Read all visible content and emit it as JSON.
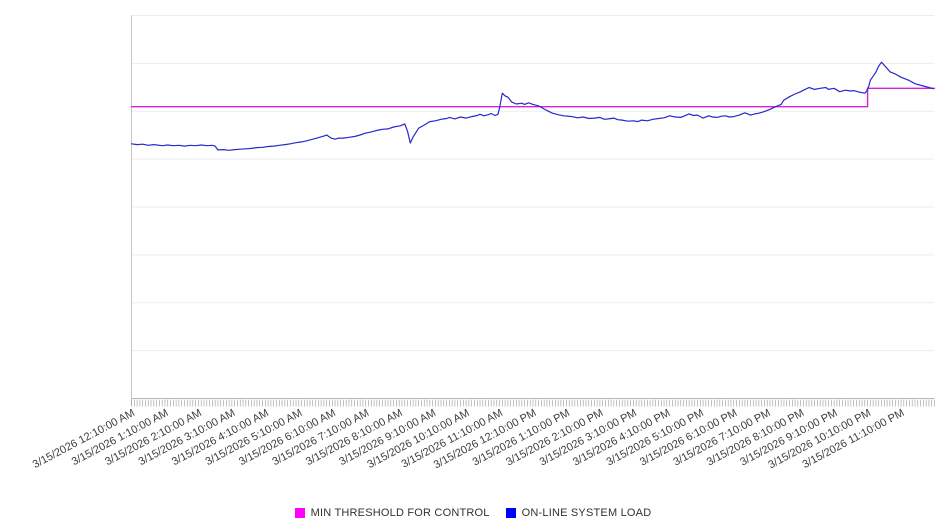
{
  "chart": {
    "legend": {
      "items": [
        {
          "label": "MIN THRESHOLD FOR CONTROL",
          "color": "#ff00ff"
        },
        {
          "label": "ON-LINE SYSTEM LOAD",
          "color": "#0000ff"
        }
      ]
    }
  },
  "chart_data": {
    "type": "line",
    "title": "",
    "x_axis": {
      "kind": "datetime",
      "label_interval_minutes": 60,
      "minor_tick_minutes": 5,
      "range_minutes": [
        0,
        1440
      ],
      "labels": [
        "3/15/2026 12:10:00 AM",
        "3/15/2026 1:10:00 AM",
        "3/15/2026 2:10:00 AM",
        "3/15/2026 3:10:00 AM",
        "3/15/2026 4:10:00 AM",
        "3/15/2026 5:10:00 AM",
        "3/15/2026 6:10:00 AM",
        "3/15/2026 7:10:00 AM",
        "3/15/2026 8:10:00 AM",
        "3/15/2026 9:10:00 AM",
        "3/15/2026 10:10:00 AM",
        "3/15/2026 11:10:00 AM",
        "3/15/2026 12:10:00 PM",
        "3/15/2026 1:10:00 PM",
        "3/15/2026 2:10:00 PM",
        "3/15/2026 3:10:00 PM",
        "3/15/2026 4:10:00 PM",
        "3/15/2026 5:10:00 PM",
        "3/15/2026 6:10:00 PM",
        "3/15/2026 7:10:00 PM",
        "3/15/2026 8:10:00 PM",
        "3/15/2026 9:10:00 PM",
        "3/15/2026 10:10:00 PM",
        "3/15/2026 11:10:00 PM"
      ]
    },
    "y_axis": {
      "labels_visible": false,
      "range": [
        0,
        100
      ],
      "unit": "relative level (axis unlabeled, % of plot height)",
      "gridline_values": [
        0,
        12.5,
        25,
        37.5,
        50,
        62.5,
        75,
        87.5,
        100
      ]
    },
    "legend_position": "bottom-center",
    "grid": "horizontal-only",
    "series": [
      {
        "name": "MIN THRESHOLD FOR CONTROL",
        "color": "#d81ed8",
        "width": 1.4,
        "points": [
          [
            0,
            76.2
          ],
          [
            1320,
            76.2
          ],
          [
            1320,
            81.0
          ],
          [
            1440,
            81.0
          ]
        ]
      },
      {
        "name": "ON-LINE SYSTEM LOAD",
        "color": "#2828cc",
        "width": 1.2,
        "points": [
          [
            0,
            66.5
          ],
          [
            10,
            66.3
          ],
          [
            20,
            66.4
          ],
          [
            30,
            66.1
          ],
          [
            40,
            66.3
          ],
          [
            55,
            66.0
          ],
          [
            65,
            66.2
          ],
          [
            75,
            66.0
          ],
          [
            85,
            66.1
          ],
          [
            95,
            65.9
          ],
          [
            105,
            66.1
          ],
          [
            115,
            66.0
          ],
          [
            125,
            66.2
          ],
          [
            135,
            66.0
          ],
          [
            145,
            66.1
          ],
          [
            150,
            65.9
          ],
          [
            155,
            64.9
          ],
          [
            165,
            65.0
          ],
          [
            175,
            64.8
          ],
          [
            185,
            65.0
          ],
          [
            195,
            65.1
          ],
          [
            205,
            65.2
          ],
          [
            215,
            65.3
          ],
          [
            225,
            65.5
          ],
          [
            235,
            65.6
          ],
          [
            245,
            65.8
          ],
          [
            255,
            65.9
          ],
          [
            265,
            66.1
          ],
          [
            275,
            66.3
          ],
          [
            285,
            66.5
          ],
          [
            295,
            66.8
          ],
          [
            305,
            67.0
          ],
          [
            315,
            67.3
          ],
          [
            325,
            67.7
          ],
          [
            335,
            68.1
          ],
          [
            345,
            68.5
          ],
          [
            350,
            68.8
          ],
          [
            358,
            68.0
          ],
          [
            365,
            67.7
          ],
          [
            372,
            68.0
          ],
          [
            380,
            68.0
          ],
          [
            390,
            68.2
          ],
          [
            400,
            68.4
          ],
          [
            410,
            68.8
          ],
          [
            420,
            69.3
          ],
          [
            430,
            69.6
          ],
          [
            440,
            70.0
          ],
          [
            450,
            70.3
          ],
          [
            460,
            70.4
          ],
          [
            470,
            70.9
          ],
          [
            482,
            71.2
          ],
          [
            490,
            71.7
          ],
          [
            495,
            69.8
          ],
          [
            500,
            66.7
          ],
          [
            505,
            68.3
          ],
          [
            515,
            70.6
          ],
          [
            525,
            71.4
          ],
          [
            535,
            72.3
          ],
          [
            545,
            72.5
          ],
          [
            555,
            72.9
          ],
          [
            565,
            73.1
          ],
          [
            570,
            73.4
          ],
          [
            580,
            73.0
          ],
          [
            590,
            73.5
          ],
          [
            600,
            73.2
          ],
          [
            610,
            73.6
          ],
          [
            620,
            73.9
          ],
          [
            625,
            74.2
          ],
          [
            632,
            73.8
          ],
          [
            640,
            74.1
          ],
          [
            645,
            74.4
          ],
          [
            652,
            73.9
          ],
          [
            657,
            74.2
          ],
          [
            660,
            75.8
          ],
          [
            665,
            79.7
          ],
          [
            670,
            79.0
          ],
          [
            675,
            78.7
          ],
          [
            682,
            77.4
          ],
          [
            690,
            76.9
          ],
          [
            700,
            77.1
          ],
          [
            705,
            76.8
          ],
          [
            712,
            77.2
          ],
          [
            720,
            76.8
          ],
          [
            730,
            76.4
          ],
          [
            740,
            75.6
          ],
          [
            748,
            75.0
          ],
          [
            755,
            74.5
          ],
          [
            765,
            74.1
          ],
          [
            775,
            73.8
          ],
          [
            790,
            73.6
          ],
          [
            800,
            73.3
          ],
          [
            810,
            73.5
          ],
          [
            820,
            73.1
          ],
          [
            830,
            73.2
          ],
          [
            840,
            73.4
          ],
          [
            848,
            72.9
          ],
          [
            855,
            73.0
          ],
          [
            865,
            73.2
          ],
          [
            872,
            72.8
          ],
          [
            880,
            72.7
          ],
          [
            890,
            72.4
          ],
          [
            900,
            72.5
          ],
          [
            908,
            72.3
          ],
          [
            915,
            72.7
          ],
          [
            925,
            72.5
          ],
          [
            935,
            72.9
          ],
          [
            945,
            73.1
          ],
          [
            955,
            73.3
          ],
          [
            965,
            73.8
          ],
          [
            975,
            73.5
          ],
          [
            985,
            73.4
          ],
          [
            995,
            74.0
          ],
          [
            1000,
            74.3
          ],
          [
            1008,
            73.9
          ],
          [
            1015,
            74.0
          ],
          [
            1025,
            73.2
          ],
          [
            1035,
            73.8
          ],
          [
            1042,
            73.5
          ],
          [
            1050,
            73.4
          ],
          [
            1058,
            73.7
          ],
          [
            1065,
            73.8
          ],
          [
            1072,
            73.5
          ],
          [
            1080,
            73.6
          ],
          [
            1090,
            74.0
          ],
          [
            1100,
            74.6
          ],
          [
            1110,
            74.0
          ],
          [
            1118,
            74.3
          ],
          [
            1125,
            74.5
          ],
          [
            1135,
            74.9
          ],
          [
            1145,
            75.5
          ],
          [
            1155,
            76.2
          ],
          [
            1165,
            76.8
          ],
          [
            1170,
            77.9
          ],
          [
            1180,
            78.8
          ],
          [
            1190,
            79.5
          ],
          [
            1200,
            80.1
          ],
          [
            1205,
            80.5
          ],
          [
            1215,
            81.2
          ],
          [
            1225,
            80.7
          ],
          [
            1235,
            81.0
          ],
          [
            1245,
            81.2
          ],
          [
            1250,
            80.7
          ],
          [
            1260,
            81.0
          ],
          [
            1270,
            80.1
          ],
          [
            1280,
            80.5
          ],
          [
            1290,
            80.3
          ],
          [
            1295,
            80.4
          ],
          [
            1305,
            80.0
          ],
          [
            1315,
            79.7
          ],
          [
            1318,
            80.2
          ],
          [
            1322,
            81.5
          ],
          [
            1325,
            83.1
          ],
          [
            1335,
            85.2
          ],
          [
            1340,
            86.8
          ],
          [
            1345,
            87.8
          ],
          [
            1350,
            87.0
          ],
          [
            1355,
            86.2
          ],
          [
            1360,
            85.3
          ],
          [
            1370,
            84.7
          ],
          [
            1380,
            83.9
          ],
          [
            1395,
            83.0
          ],
          [
            1405,
            82.2
          ],
          [
            1420,
            81.6
          ],
          [
            1430,
            81.2
          ],
          [
            1438,
            80.9
          ]
        ]
      }
    ]
  }
}
